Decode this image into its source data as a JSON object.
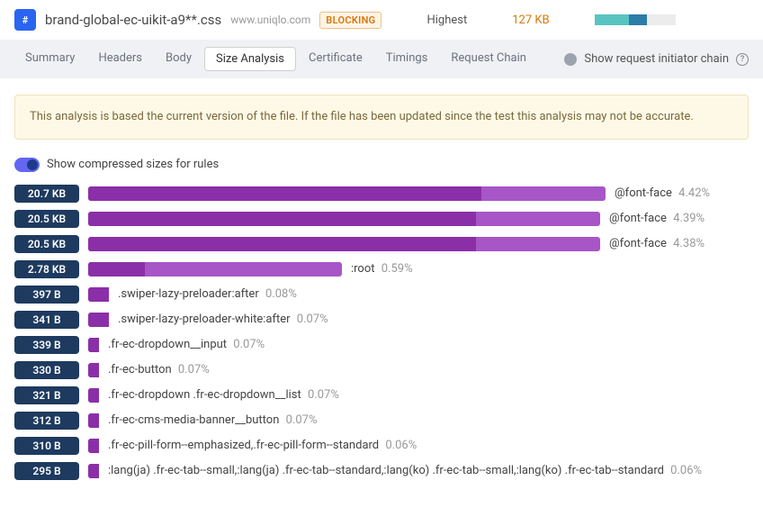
{
  "header": {
    "icon_text": "#",
    "file_name": "brand-global-ec-uikit-a9**.css",
    "domain": "www.uniqlo.com",
    "blocking_label": "BLOCKING",
    "priority": "Highest",
    "size": "127 KB",
    "mini_bar": {
      "segments": [
        {
          "color": "#57c4c0",
          "width": 38
        },
        {
          "color": "#2b7ea8",
          "width": 20
        }
      ],
      "bg": "#ececec"
    }
  },
  "tabs": {
    "items": [
      {
        "label": "Summary",
        "active": false
      },
      {
        "label": "Headers",
        "active": false
      },
      {
        "label": "Body",
        "active": false
      },
      {
        "label": "Size Analysis",
        "active": true
      },
      {
        "label": "Certificate",
        "active": false
      },
      {
        "label": "Timings",
        "active": false
      },
      {
        "label": "Request Chain",
        "active": false
      }
    ],
    "initiator_label": "Show request initiator chain"
  },
  "warning_text": "This analysis is based the current version of the file. If the file has been updated since the test this analysis may not be accurate.",
  "toggle_label": "Show compressed sizes for rules",
  "bar_area": {
    "max_width": 575,
    "outer_color": "#a855c7",
    "inner_color": "#8b2fa8"
  },
  "rules": [
    {
      "size": "20.7 KB",
      "label": "@font-face",
      "pct": "4.42%",
      "outer_pct": 100,
      "inner_pct": 76
    },
    {
      "size": "20.5 KB",
      "label": "@font-face",
      "pct": "4.39%",
      "outer_pct": 99,
      "inner_pct": 75
    },
    {
      "size": "20.5 KB",
      "label": "@font-face",
      "pct": "4.38%",
      "outer_pct": 99,
      "inner_pct": 75
    },
    {
      "size": "2.78 KB",
      "label": ":root",
      "pct": "0.59%",
      "outer_pct": 49,
      "inner_pct": 11
    },
    {
      "size": "397 B",
      "label": ".swiper-lazy-preloader:after",
      "pct": "0.08%",
      "outer_pct": 4,
      "inner_pct": 4
    },
    {
      "size": "341 B",
      "label": ".swiper-lazy-preloader-white:after",
      "pct": "0.07%",
      "outer_pct": 4,
      "inner_pct": 4
    },
    {
      "size": "339 B",
      "label": ".fr-ec-dropdown__input",
      "pct": "0.07%",
      "outer_pct": 2,
      "inner_pct": 2
    },
    {
      "size": "330 B",
      "label": ".fr-ec-button",
      "pct": "0.07%",
      "outer_pct": 2,
      "inner_pct": 2
    },
    {
      "size": "321 B",
      "label": ".fr-ec-dropdown .fr-ec-dropdown__list",
      "pct": "0.07%",
      "outer_pct": 2,
      "inner_pct": 2
    },
    {
      "size": "312 B",
      "label": ".fr-ec-cms-media-banner__button",
      "pct": "0.07%",
      "outer_pct": 2,
      "inner_pct": 2
    },
    {
      "size": "310 B",
      "label": ".fr-ec-pill-form--emphasized,.fr-ec-pill-form--standard",
      "pct": "0.06%",
      "outer_pct": 2,
      "inner_pct": 2
    },
    {
      "size": "295 B",
      "label": ":lang(ja) .fr-ec-tab--small,:lang(ja) .fr-ec-tab--standard,:lang(ko) .fr-ec-tab--small,:lang(ko) .fr-ec-tab--standard",
      "pct": "0.06%",
      "outer_pct": 2,
      "inner_pct": 2
    }
  ]
}
